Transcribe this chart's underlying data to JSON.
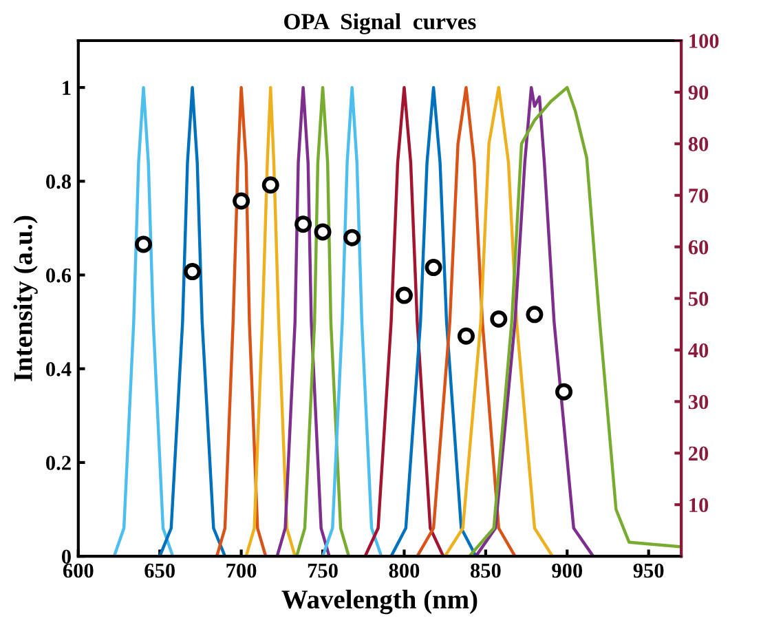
{
  "chart_data": {
    "type": "line",
    "title": "OPA  Signal  curves",
    "xlabel": "Wavelength (nm)",
    "ylabel": "Intensity (a.u.)",
    "xlim": [
      600,
      970
    ],
    "xticks": [
      600,
      650,
      700,
      750,
      800,
      850,
      900,
      950
    ],
    "ylim": [
      0,
      1.1
    ],
    "yticks": [
      0,
      0.2,
      0.4,
      0.6,
      0.8,
      1
    ],
    "y2lim": [
      0,
      100
    ],
    "y2ticks": [
      10,
      20,
      30,
      40,
      50,
      60,
      70,
      80,
      90,
      100
    ],
    "grid": false,
    "marker": "none",
    "line_style": "solid",
    "series": [
      {
        "color": "#4dbeee",
        "x": [
          600,
          622,
          628,
          634,
          637,
          640,
          643,
          646,
          652,
          658,
          970
        ],
        "values": [
          0,
          0,
          0.06,
          0.5,
          0.84,
          1,
          0.84,
          0.5,
          0.06,
          0,
          0
        ]
      },
      {
        "color": "#0072bd",
        "x": [
          600,
          650,
          657,
          664,
          667,
          670,
          673,
          676,
          683,
          690,
          970
        ],
        "values": [
          0,
          0,
          0.06,
          0.5,
          0.84,
          1,
          0.84,
          0.5,
          0.06,
          0,
          0
        ]
      },
      {
        "color": "#d95319",
        "x": [
          600,
          685,
          690,
          695,
          698,
          700,
          703,
          705,
          710,
          715,
          970
        ],
        "values": [
          0,
          0,
          0.06,
          0.5,
          0.84,
          1,
          0.84,
          0.5,
          0.06,
          0,
          0
        ]
      },
      {
        "color": "#edb120",
        "x": [
          600,
          703,
          708,
          713,
          716,
          718,
          720,
          723,
          728,
          733,
          970
        ],
        "values": [
          0,
          0,
          0.06,
          0.5,
          0.84,
          1,
          0.84,
          0.5,
          0.06,
          0,
          0
        ]
      },
      {
        "color": "#7e2f8e",
        "x": [
          600,
          722,
          727,
          733,
          735,
          738,
          741,
          743,
          749,
          754,
          970
        ],
        "values": [
          0,
          0,
          0.06,
          0.5,
          0.84,
          1,
          0.84,
          0.5,
          0.06,
          0,
          0
        ]
      },
      {
        "color": "#77ac30",
        "x": [
          600,
          734,
          739,
          745,
          747,
          750,
          753,
          755,
          761,
          766,
          970
        ],
        "values": [
          0,
          0,
          0.06,
          0.5,
          0.84,
          1,
          0.84,
          0.5,
          0.06,
          0,
          0
        ]
      },
      {
        "color": "#4dbeee",
        "x": [
          600,
          750,
          756,
          762,
          765,
          768,
          771,
          774,
          780,
          786,
          970
        ],
        "values": [
          0,
          0,
          0.06,
          0.5,
          0.84,
          1,
          0.84,
          0.5,
          0.06,
          0,
          0
        ]
      },
      {
        "color": "#a2142f",
        "x": [
          600,
          776,
          784,
          792,
          796,
          800,
          804,
          808,
          816,
          824,
          970
        ],
        "values": [
          0,
          0,
          0.06,
          0.5,
          0.84,
          1,
          0.84,
          0.5,
          0.06,
          0,
          0
        ]
      },
      {
        "color": "#0072bd",
        "x": [
          600,
          792,
          801,
          810,
          814,
          818,
          822,
          826,
          835,
          844,
          970
        ],
        "values": [
          0,
          0,
          0.06,
          0.5,
          0.84,
          1,
          0.84,
          0.5,
          0.06,
          0,
          0
        ]
      },
      {
        "color": "#d95319",
        "x": [
          600,
          808,
          818,
          828,
          833,
          838,
          843,
          848,
          858,
          868,
          970
        ],
        "values": [
          0,
          0,
          0.06,
          0.5,
          0.88,
          1,
          0.84,
          0.5,
          0.06,
          0,
          0
        ]
      },
      {
        "color": "#edb120",
        "x": [
          600,
          825,
          836,
          847,
          852,
          858,
          864,
          869,
          880,
          891,
          970
        ],
        "values": [
          0,
          0,
          0.06,
          0.5,
          0.88,
          1,
          0.84,
          0.5,
          0.06,
          0,
          0
        ]
      },
      {
        "color": "#7e2f8e",
        "x": [
          600,
          844,
          856,
          868,
          874,
          878,
          880,
          883,
          886,
          892,
          904,
          916,
          970
        ],
        "values": [
          0,
          0,
          0.06,
          0.5,
          0.84,
          1,
          0.96,
          0.98,
          0.84,
          0.5,
          0.06,
          0,
          0
        ]
      },
      {
        "color": "#77ac30",
        "x": [
          600,
          840,
          855,
          866,
          872,
          880,
          890,
          900,
          905,
          912,
          920,
          930,
          938,
          970
        ],
        "values": [
          0,
          0,
          0.06,
          0.5,
          0.88,
          0.93,
          0.97,
          1,
          0.95,
          0.85,
          0.5,
          0.1,
          0.03,
          0.02
        ]
      },
      {
        "type": "scatter",
        "marker": "circle",
        "axis": "y2",
        "color": "#000000",
        "x": [
          640,
          670,
          700,
          718,
          738,
          750,
          768,
          800,
          818,
          838,
          858,
          880,
          898
        ],
        "values": [
          60.5,
          55.2,
          68.9,
          72,
          64.4,
          62.9,
          61.8,
          50.6,
          56,
          42.7,
          46,
          46.9,
          31.9
        ]
      }
    ]
  }
}
